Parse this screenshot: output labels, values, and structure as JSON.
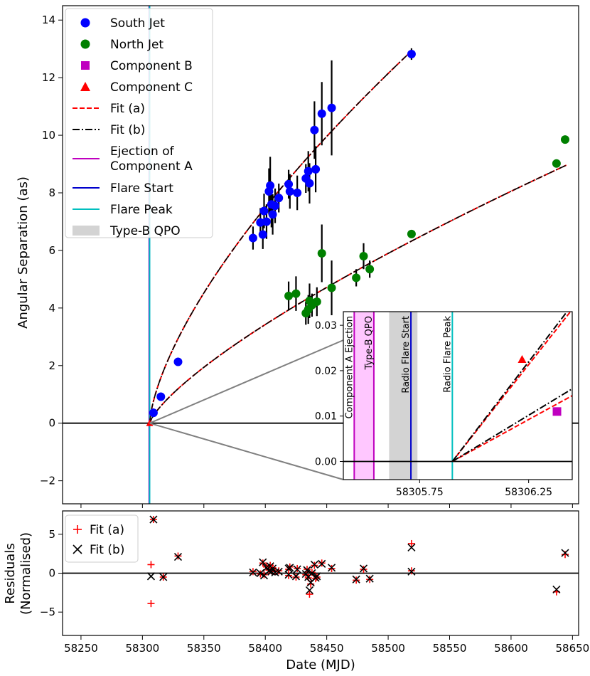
{
  "chart_data": [
    {
      "panel": "main",
      "type": "scatter",
      "xlabel": "",
      "ylabel": "Angular Separation (as)",
      "xlim": [
        58235,
        58655
      ],
      "ylim": [
        -2.8,
        14.5
      ],
      "xticks": [
        58250,
        58300,
        58350,
        58400,
        58450,
        58500,
        58550,
        58600,
        58650
      ],
      "yticks": [
        -2,
        0,
        2,
        4,
        6,
        8,
        10,
        12,
        14
      ],
      "zero_line": 0,
      "legend_position": "upper-left",
      "series": [
        {
          "name": "South Jet",
          "color": "#0000ff",
          "marker": "circle",
          "points": [
            {
              "x": 58309,
              "y": 0.36,
              "err": 0.15
            },
            {
              "x": 58315,
              "y": 0.92,
              "err": 0.1
            },
            {
              "x": 58329,
              "y": 2.13,
              "err": 0.1
            },
            {
              "x": 58390,
              "y": 6.43,
              "err": 0.4
            },
            {
              "x": 58396,
              "y": 6.97,
              "err": 0.5
            },
            {
              "x": 58398,
              "y": 6.55,
              "err": 0.5
            },
            {
              "x": 58399,
              "y": 7.37,
              "err": 0.6
            },
            {
              "x": 58401,
              "y": 7.0,
              "err": 0.6
            },
            {
              "x": 58403,
              "y": 8.05,
              "err": 0.8
            },
            {
              "x": 58404,
              "y": 8.25,
              "err": 1.0
            },
            {
              "x": 58405,
              "y": 7.6,
              "err": 0.8
            },
            {
              "x": 58406,
              "y": 7.25,
              "err": 0.7
            },
            {
              "x": 58408,
              "y": 7.55,
              "err": 0.6
            },
            {
              "x": 58411,
              "y": 7.82,
              "err": 0.5
            },
            {
              "x": 58419,
              "y": 8.3,
              "err": 0.5
            },
            {
              "x": 58420,
              "y": 8.05,
              "err": 0.6
            },
            {
              "x": 58426,
              "y": 8.0,
              "err": 0.6
            },
            {
              "x": 58433,
              "y": 8.5,
              "err": 0.5
            },
            {
              "x": 58435,
              "y": 8.75,
              "err": 0.7
            },
            {
              "x": 58436,
              "y": 8.33,
              "err": 0.7
            },
            {
              "x": 58440,
              "y": 10.18,
              "err": 1.0
            },
            {
              "x": 58441,
              "y": 8.82,
              "err": 0.8
            },
            {
              "x": 58446,
              "y": 10.75,
              "err": 1.1
            },
            {
              "x": 58454,
              "y": 10.95,
              "err": 1.65
            },
            {
              "x": 58519,
              "y": 12.82,
              "err": 0.2
            }
          ]
        },
        {
          "name": "North Jet",
          "color": "#008000",
          "marker": "circle",
          "points": [
            {
              "x": 58419,
              "y": 4.42,
              "err": 0.5
            },
            {
              "x": 58425,
              "y": 4.5,
              "err": 0.6
            },
            {
              "x": 58433,
              "y": 3.82,
              "err": 0.4
            },
            {
              "x": 58435,
              "y": 3.95,
              "err": 0.5
            },
            {
              "x": 58436,
              "y": 4.25,
              "err": 0.6
            },
            {
              "x": 58438,
              "y": 4.1,
              "err": 0.4
            },
            {
              "x": 58442,
              "y": 4.22,
              "err": 0.5
            },
            {
              "x": 58446,
              "y": 5.9,
              "err": 1.0
            },
            {
              "x": 58454,
              "y": 4.7,
              "err": 0.95
            },
            {
              "x": 58474,
              "y": 5.05,
              "err": 0.3
            },
            {
              "x": 58480,
              "y": 5.8,
              "err": 0.45
            },
            {
              "x": 58485,
              "y": 5.35,
              "err": 0.3
            },
            {
              "x": 58519,
              "y": 6.57,
              "err": 0.1
            },
            {
              "x": 58637,
              "y": 9.02,
              "err": 0.1
            },
            {
              "x": 58644,
              "y": 9.85,
              "err": 0.1
            }
          ]
        },
        {
          "name": "Component B",
          "color": "#bf00bf",
          "marker": "square",
          "points": []
        },
        {
          "name": "Component C",
          "color": "#ff0000",
          "marker": "triangle",
          "points": []
        },
        {
          "name": "Fit (a)",
          "color": "#ff0000",
          "style": "dashed"
        },
        {
          "name": "Fit (b)",
          "color": "#000000",
          "style": "dashdot"
        }
      ],
      "fit_models": {
        "t0": 58305.9,
        "south": {
          "a": 0.3617,
          "p": 0.667,
          "x_end": 58518
        },
        "north": {
          "a": 0.1134,
          "p": 0.75,
          "x_end": 58645
        }
      },
      "vertical_markers": [
        {
          "name": "Ejection of Component A",
          "color": "#bf00bf",
          "x": 58305.45
        },
        {
          "name": "Flare Start",
          "color": "#0000cc",
          "x": 58305.71
        },
        {
          "name": "Flare Peak",
          "color": "#00bfbf",
          "x": 58305.9
        }
      ],
      "shaded_regions": [
        {
          "name": "Type-B QPO",
          "color": "#d3d3d3",
          "x0": 58305.61,
          "x1": 58305.74
        }
      ],
      "legend": [
        {
          "label": "South Jet",
          "kind": "circle",
          "color": "#0000ff"
        },
        {
          "label": "North Jet",
          "kind": "circle",
          "color": "#008000"
        },
        {
          "label": "Component B",
          "kind": "square",
          "color": "#bf00bf"
        },
        {
          "label": "Component C",
          "kind": "triangle",
          "color": "#ff0000"
        },
        {
          "label": "Fit (a)",
          "kind": "dashed",
          "color": "#ff0000"
        },
        {
          "label": "Fit (b)",
          "kind": "dashdot",
          "color": "#000000"
        },
        {
          "label": "Ejection of",
          "label2": "Component A",
          "kind": "line",
          "color": "#bf00bf"
        },
        {
          "label": "Flare Start",
          "kind": "line",
          "color": "#0000cc"
        },
        {
          "label": "Flare Peak",
          "kind": "line",
          "color": "#00bfbf"
        },
        {
          "label": "Type-B QPO",
          "kind": "patch",
          "color": "#d3d3d3"
        }
      ]
    },
    {
      "panel": "inset",
      "type": "line",
      "xlim": [
        58305.4,
        58306.45
      ],
      "ylim": [
        -0.004,
        0.033
      ],
      "xticks": [
        58305.75,
        58306.25
      ],
      "yticks": [
        0.0,
        0.01,
        0.02,
        0.03
      ],
      "ytick_labels": [
        "0.00",
        "0.01",
        "0.02",
        "0.03"
      ],
      "ejection_band": {
        "x0": 58305.45,
        "x1": 58305.54,
        "color": "#ff99ff"
      },
      "qpo_band": {
        "x0": 58305.61,
        "x1": 58305.74,
        "color": "#d3d3d3"
      },
      "vertical_lines": [
        {
          "x": 58305.45,
          "color": "#bf00bf",
          "label": "Component A Ejection"
        },
        {
          "x": 58305.54,
          "color": "#bf00bf",
          "label": "Type-B QPO"
        },
        {
          "x": 58305.71,
          "color": "#0000cc",
          "label": "Radio Flare Start"
        },
        {
          "x": 58305.9,
          "color": "#00bfbf",
          "label": "Radio Flare Peak"
        }
      ],
      "fit_lines": [
        {
          "name": "south Fit (a)",
          "color": "#ff0000",
          "style": "dashed",
          "x0": 58305.9,
          "y0": 0.0,
          "x1": 58306.45,
          "y1": 0.0335
        },
        {
          "name": "south Fit (b)",
          "color": "#000000",
          "style": "dashdot",
          "x0": 58305.9,
          "y0": 0.0,
          "x1": 58306.45,
          "y1": 0.0345
        },
        {
          "name": "north Fit (a)",
          "color": "#ff0000",
          "style": "dashed",
          "x0": 58305.9,
          "y0": 0.0,
          "x1": 58306.45,
          "y1": 0.0145
        },
        {
          "name": "north Fit (b)",
          "color": "#000000",
          "style": "dashdot",
          "x0": 58305.9,
          "y0": 0.0,
          "x1": 58306.45,
          "y1": 0.016
        }
      ],
      "points": [
        {
          "name": "Component C",
          "x": 58306.22,
          "y": 0.0225,
          "color": "#ff0000",
          "marker": "triangle"
        },
        {
          "name": "Component B",
          "x": 58306.38,
          "y": 0.011,
          "color": "#bf00bf",
          "marker": "square"
        }
      ]
    },
    {
      "panel": "residuals",
      "type": "scatter",
      "xlabel": "Date (MJD)",
      "ylabel": "Residuals",
      "ylabel2": "(Normalised)",
      "xlim": [
        58235,
        58655
      ],
      "ylim": [
        -8,
        8
      ],
      "xticks": [
        58250,
        58300,
        58350,
        58400,
        58450,
        58500,
        58550,
        58600,
        58650
      ],
      "yticks": [
        -5,
        0,
        5
      ],
      "legend_position": "upper-left",
      "legend": [
        {
          "label": "Fit (a)",
          "kind": "plus",
          "color": "#ff0000"
        },
        {
          "label": "Fit (b)",
          "kind": "x",
          "color": "#000000"
        }
      ],
      "series": [
        {
          "name": "Fit (a)",
          "color": "#ff0000",
          "marker": "plus",
          "points": [
            [
              58307,
              1.1
            ],
            [
              58307,
              -3.9
            ],
            [
              58309,
              6.9
            ],
            [
              58317,
              -0.5
            ],
            [
              58329,
              2.2
            ],
            [
              58390,
              0.2
            ],
            [
              58396,
              -0.1
            ],
            [
              58398,
              1.3
            ],
            [
              58399,
              -0.2
            ],
            [
              58401,
              0.8
            ],
            [
              58403,
              0.4
            ],
            [
              58404,
              1.0
            ],
            [
              58405,
              0.3
            ],
            [
              58406,
              0.7
            ],
            [
              58408,
              0.2
            ],
            [
              58411,
              0.3
            ],
            [
              58419,
              0.5
            ],
            [
              58419,
              -0.3
            ],
            [
              58420,
              0.8
            ],
            [
              58425,
              -0.5
            ],
            [
              58426,
              0.6
            ],
            [
              58433,
              -0.2
            ],
            [
              58434,
              0.5
            ],
            [
              58435,
              -0.6
            ],
            [
              58436,
              -2.7
            ],
            [
              58437,
              -1.4
            ],
            [
              58438,
              0.1
            ],
            [
              58440,
              1.0
            ],
            [
              58441,
              -0.7
            ],
            [
              58442,
              -0.5
            ],
            [
              58446,
              1.3
            ],
            [
              58454,
              0.6
            ],
            [
              58474,
              -0.9
            ],
            [
              58480,
              0.5
            ],
            [
              58485,
              -0.8
            ],
            [
              58519,
              3.8
            ],
            [
              58519,
              0.3
            ],
            [
              58637,
              -2.4
            ],
            [
              58644,
              2.4
            ]
          ]
        },
        {
          "name": "Fit (b)",
          "color": "#000000",
          "marker": "x",
          "points": [
            [
              58307,
              -0.4
            ],
            [
              58309,
              6.9
            ],
            [
              58317,
              -0.5
            ],
            [
              58329,
              2.1
            ],
            [
              58390,
              0.1
            ],
            [
              58396,
              0.0
            ],
            [
              58398,
              1.4
            ],
            [
              58399,
              -0.3
            ],
            [
              58401,
              0.7
            ],
            [
              58403,
              0.3
            ],
            [
              58404,
              0.9
            ],
            [
              58405,
              0.2
            ],
            [
              58406,
              0.6
            ],
            [
              58408,
              0.1
            ],
            [
              58411,
              0.2
            ],
            [
              58419,
              0.6
            ],
            [
              58419,
              -0.2
            ],
            [
              58420,
              0.7
            ],
            [
              58425,
              -0.4
            ],
            [
              58426,
              0.5
            ],
            [
              58433,
              -0.1
            ],
            [
              58434,
              0.4
            ],
            [
              58435,
              -0.5
            ],
            [
              58436,
              -2.2
            ],
            [
              58437,
              -1.2
            ],
            [
              58438,
              0.0
            ],
            [
              58440,
              1.1
            ],
            [
              58441,
              -0.6
            ],
            [
              58442,
              -0.4
            ],
            [
              58446,
              1.2
            ],
            [
              58454,
              0.7
            ],
            [
              58474,
              -0.8
            ],
            [
              58480,
              0.6
            ],
            [
              58485,
              -0.7
            ],
            [
              58519,
              3.3
            ],
            [
              58519,
              0.2
            ],
            [
              58637,
              -2.1
            ],
            [
              58644,
              2.6
            ]
          ]
        }
      ]
    }
  ]
}
